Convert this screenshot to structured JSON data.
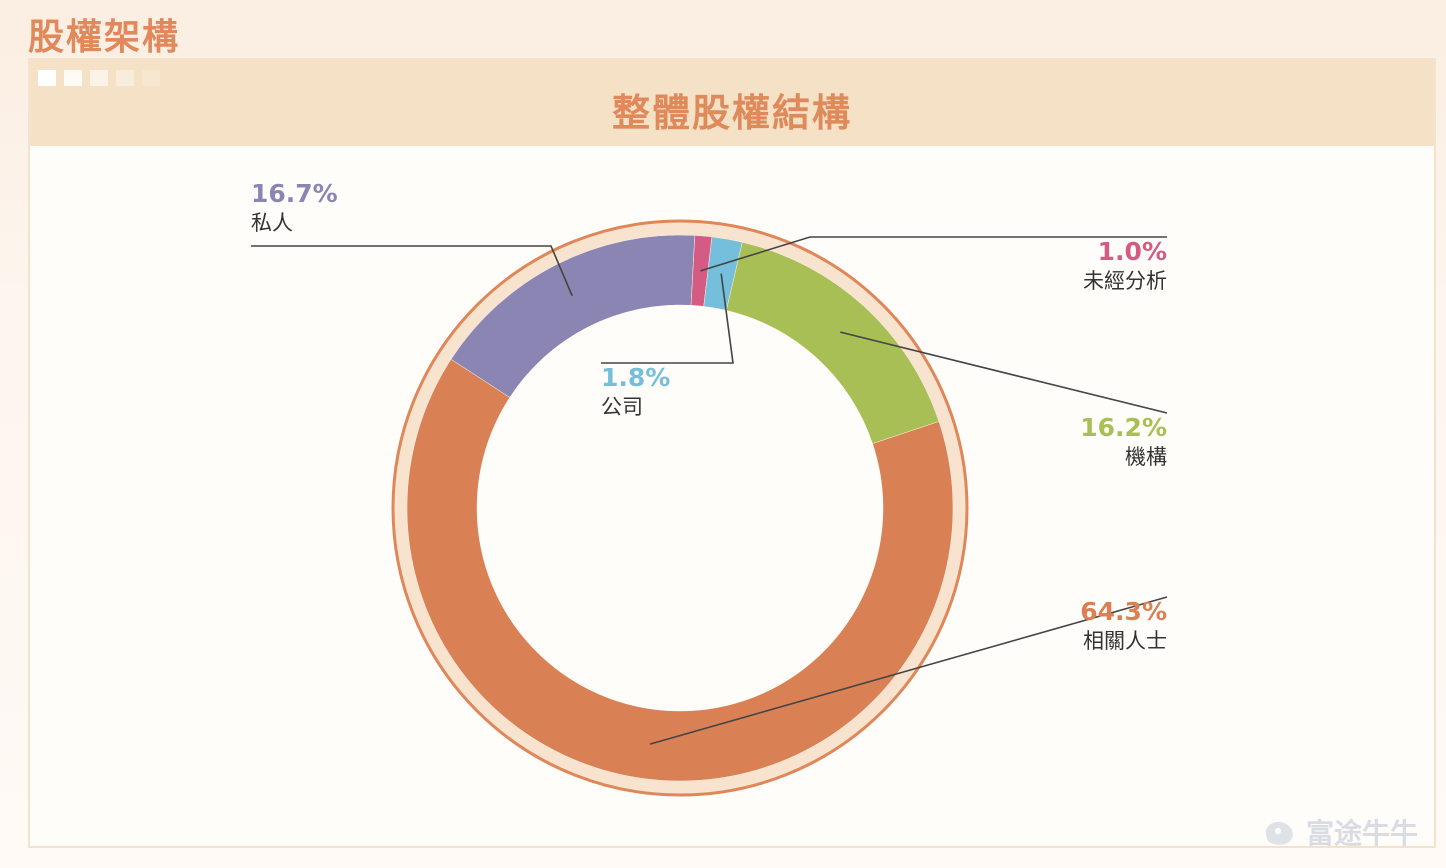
{
  "page_heading": "股權架構",
  "watermark": "富途牛牛",
  "chart_data": {
    "type": "pie",
    "title": "整體股權結構",
    "slices": [
      {
        "label": "私人",
        "percent_label": "16.7%",
        "value": 16.7,
        "color": "#8a85b3"
      },
      {
        "label": "未經分析",
        "percent_label": "1.0%",
        "value": 1.0,
        "color": "#d45b84"
      },
      {
        "label": "公司",
        "percent_label": "1.8%",
        "value": 1.8,
        "color": "#76bfdc"
      },
      {
        "label": "機構",
        "percent_label": "16.2%",
        "value": 16.2,
        "color": "#a8bf55"
      },
      {
        "label": "相關人士",
        "percent_label": "64.3%",
        "value": 64.3,
        "color": "#d98155"
      }
    ],
    "start_slice": "私人",
    "legend": "callouts"
  }
}
